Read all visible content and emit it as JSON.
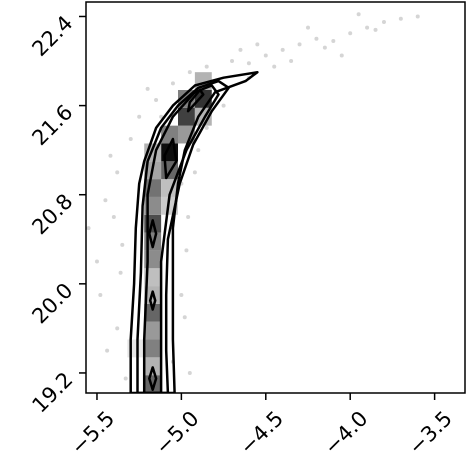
{
  "chart_data": {
    "type": "scatter",
    "xlim": [
      -5.565,
      -3.32
    ],
    "ylim": [
      19.02,
      22.53
    ],
    "xticks": [
      {
        "value": -5.5,
        "label": "−5.5"
      },
      {
        "value": -5.0,
        "label": "−5.0"
      },
      {
        "value": -4.5,
        "label": "−4.5"
      },
      {
        "value": -4.0,
        "label": "−4.0"
      },
      {
        "value": -3.5,
        "label": "−3.5"
      }
    ],
    "yticks": [
      {
        "value": 19.2,
        "label": "19.2"
      },
      {
        "value": 20,
        "label": "20.0"
      },
      {
        "value": 20.8,
        "label": "20.8"
      },
      {
        "value": 21.6,
        "label": "21.6"
      },
      {
        "value": 22.4,
        "label": "22.4"
      }
    ],
    "points": {
      "color": "#888888",
      "x": [
        -5.33,
        -5.05,
        -5.38,
        -4.98,
        -5.36,
        -4.97,
        -5.4,
        -5.0,
        -5.45,
        -5.38,
        -5.3,
        -5.25,
        -5.15,
        -5.05,
        -4.95,
        -4.85,
        -4.7,
        -4.6,
        -4.5,
        -4.4,
        -4.3,
        -4.2,
        -4.1,
        -4.0,
        -3.9,
        -3.8,
        -3.7,
        -3.6,
        -3.85,
        -4.15,
        -4.35,
        -4.45,
        -4.6,
        -4.75,
        -4.85,
        -4.9,
        -4.92,
        -5.5,
        -5.48,
        -5.55,
        -5.44,
        -4.95,
        -4.25,
        -3.95,
        -4.05,
        -4.55,
        -4.65,
        -5.42,
        -5.35,
        -5.0,
        -4.96,
        -5.12,
        -5.2
      ],
      "y": [
        19.15,
        19.3,
        19.6,
        19.7,
        20.1,
        20.3,
        20.6,
        20.9,
        20.75,
        21.0,
        21.3,
        21.5,
        21.65,
        21.8,
        21.9,
        21.95,
        22.0,
        21.98,
        22.05,
        22.1,
        22.15,
        22.2,
        22.18,
        22.25,
        22.3,
        22.35,
        22.38,
        22.4,
        22.28,
        22.12,
        22.0,
        21.95,
        21.85,
        21.6,
        21.4,
        21.2,
        21.0,
        20.2,
        19.9,
        20.5,
        19.4,
        19.2,
        22.3,
        22.42,
        22.05,
        22.15,
        22.1,
        21.15,
        20.35,
        19.9,
        20.6,
        21.5,
        21.75
      ]
    },
    "histogram": {
      "cell_size": [
        0.1,
        0.16
      ],
      "x": [
        -5.17,
        -5.17,
        -5.17,
        -5.27,
        -5.17,
        -5.17,
        -5.17,
        -5.17,
        -5.17,
        -5.17,
        -5.17,
        -5.17,
        -5.07,
        -5.17,
        -5.07,
        -5.17,
        -5.07,
        -5.07,
        -5.17,
        -5.07,
        -4.97,
        -4.97,
        -4.87,
        -4.87,
        -4.97,
        -4.87
      ],
      "y": [
        19.1,
        19.26,
        19.42,
        19.42,
        19.58,
        19.74,
        19.9,
        20.06,
        20.22,
        20.38,
        20.54,
        20.7,
        20.7,
        20.86,
        20.86,
        21.02,
        21.02,
        21.18,
        21.18,
        21.34,
        21.34,
        21.5,
        21.5,
        21.66,
        21.66,
        21.82
      ],
      "values": [
        0.6,
        0.3,
        0.5,
        0.1,
        0.4,
        0.6,
        0.3,
        0.25,
        0.45,
        0.5,
        0.7,
        0.45,
        0.2,
        0.55,
        0.25,
        0.35,
        0.6,
        0.95,
        0.3,
        0.5,
        0.4,
        0.75,
        0.3,
        0.8,
        0.5,
        0.3
      ]
    },
    "contours": [
      {
        "x": [
          -5.3,
          -5.3,
          -5.28,
          -5.27,
          -5.25,
          -5.22,
          -5.15,
          -5.05,
          -4.92,
          -4.75,
          -4.55,
          -4.62,
          -4.8,
          -4.9,
          -4.98,
          -5.02,
          -5.05,
          -5.05,
          -5.05,
          -5.04
        ],
        "y": [
          19.02,
          19.5,
          20.0,
          20.5,
          20.9,
          21.1,
          21.4,
          21.6,
          21.78,
          21.85,
          21.9,
          21.82,
          21.72,
          21.5,
          21.2,
          20.9,
          20.5,
          20.0,
          19.5,
          19.02
        ]
      },
      {
        "x": [
          -5.26,
          -5.26,
          -5.24,
          -5.23,
          -5.2,
          -5.12,
          -5.02,
          -4.9,
          -4.78,
          -4.72,
          -4.82,
          -4.93,
          -5.01,
          -5.08,
          -5.09,
          -5.09,
          -5.08
        ],
        "y": [
          19.02,
          19.5,
          20.1,
          20.7,
          21.1,
          21.4,
          21.6,
          21.76,
          21.82,
          21.76,
          21.55,
          21.25,
          20.9,
          20.4,
          19.9,
          19.4,
          19.02
        ]
      },
      {
        "x": [
          -5.22,
          -5.22,
          -5.2,
          -5.2,
          -5.15,
          -5.05,
          -4.92,
          -4.82,
          -4.78,
          -4.86,
          -4.97,
          -5.07,
          -5.12,
          -5.12,
          -5.12
        ],
        "y": [
          19.02,
          19.5,
          20.2,
          20.8,
          21.2,
          21.5,
          21.72,
          21.78,
          21.7,
          21.5,
          21.2,
          20.8,
          20.2,
          19.5,
          19.02
        ]
      },
      {
        "x": [
          -5.17,
          -5.15,
          -5.17,
          -5.19
        ],
        "y": [
          20.33,
          20.45,
          20.57,
          20.45
        ]
      },
      {
        "x": [
          -5.17,
          -5.155,
          -5.17,
          -5.185
        ],
        "y": [
          19.77,
          19.85,
          19.93,
          19.85
        ]
      },
      {
        "x": [
          -5.17,
          -5.15,
          -5.17,
          -5.19
        ],
        "y": [
          19.05,
          19.15,
          19.25,
          19.15
        ]
      },
      {
        "x": [
          -5.09,
          -5.03,
          -5.05,
          -5.1
        ],
        "y": [
          20.95,
          21.1,
          21.3,
          21.15
        ]
      },
      {
        "x": [
          -4.96,
          -4.87,
          -4.89,
          -4.95
        ],
        "y": [
          21.55,
          21.7,
          21.74,
          21.63
        ]
      }
    ]
  }
}
